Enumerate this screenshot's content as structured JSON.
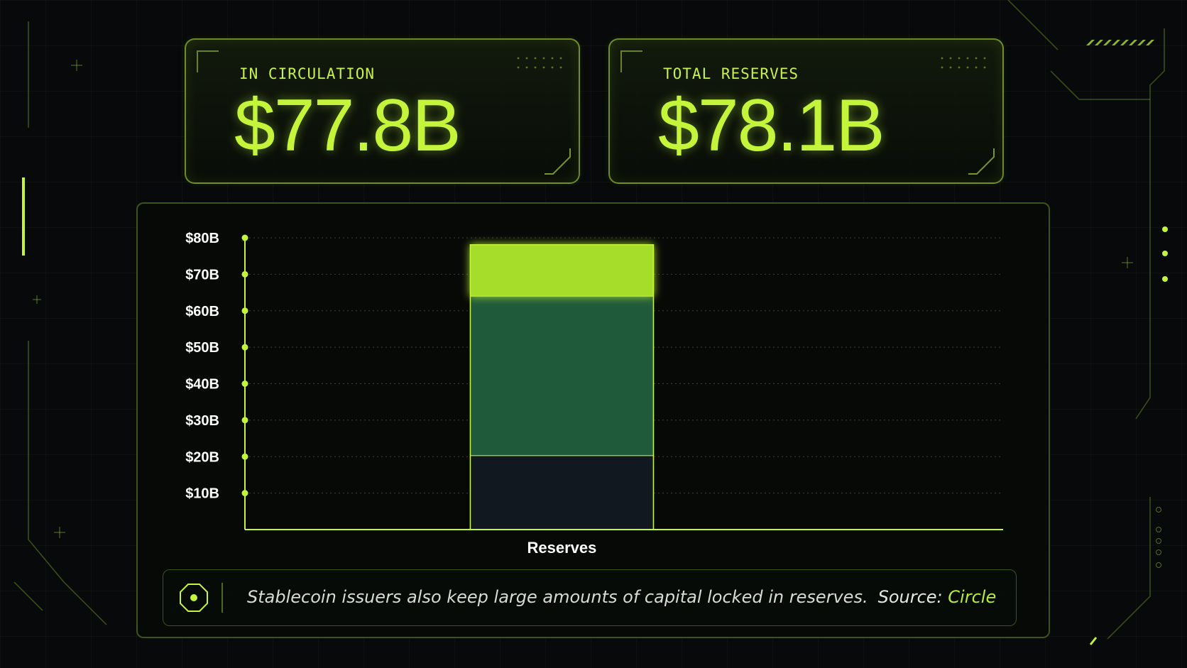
{
  "cards": {
    "circulation": {
      "label": "IN CIRCULATION",
      "value": "$77.8B"
    },
    "reserves": {
      "label": "TOTAL RESERVES",
      "value": "$78.1B"
    }
  },
  "chart_data": {
    "type": "bar",
    "stacked": true,
    "categories": [
      "Reserves"
    ],
    "series": [
      {
        "values": [
          20.3
        ],
        "color": "#111820"
      },
      {
        "values": [
          43.7
        ],
        "color": "#1f5a3a"
      },
      {
        "values": [
          14.1
        ],
        "color": "#a6dc2c"
      }
    ],
    "y_ticks": [
      {
        "value": 10,
        "label": "$10B"
      },
      {
        "value": 20,
        "label": "$20B"
      },
      {
        "value": 30,
        "label": "$30B"
      },
      {
        "value": 40,
        "label": "$40B"
      },
      {
        "value": 50,
        "label": "$50B"
      },
      {
        "value": 60,
        "label": "$60B"
      },
      {
        "value": 70,
        "label": "$70B"
      },
      {
        "value": 80,
        "label": "$80B"
      }
    ],
    "ylim": [
      0,
      80
    ],
    "grid": true,
    "accent_color": "#c4f53a"
  },
  "caption": {
    "text": "Stablecoin issuers also keep large amounts of capital locked in reserves.",
    "source_label": "Source:",
    "source": "Circle"
  }
}
